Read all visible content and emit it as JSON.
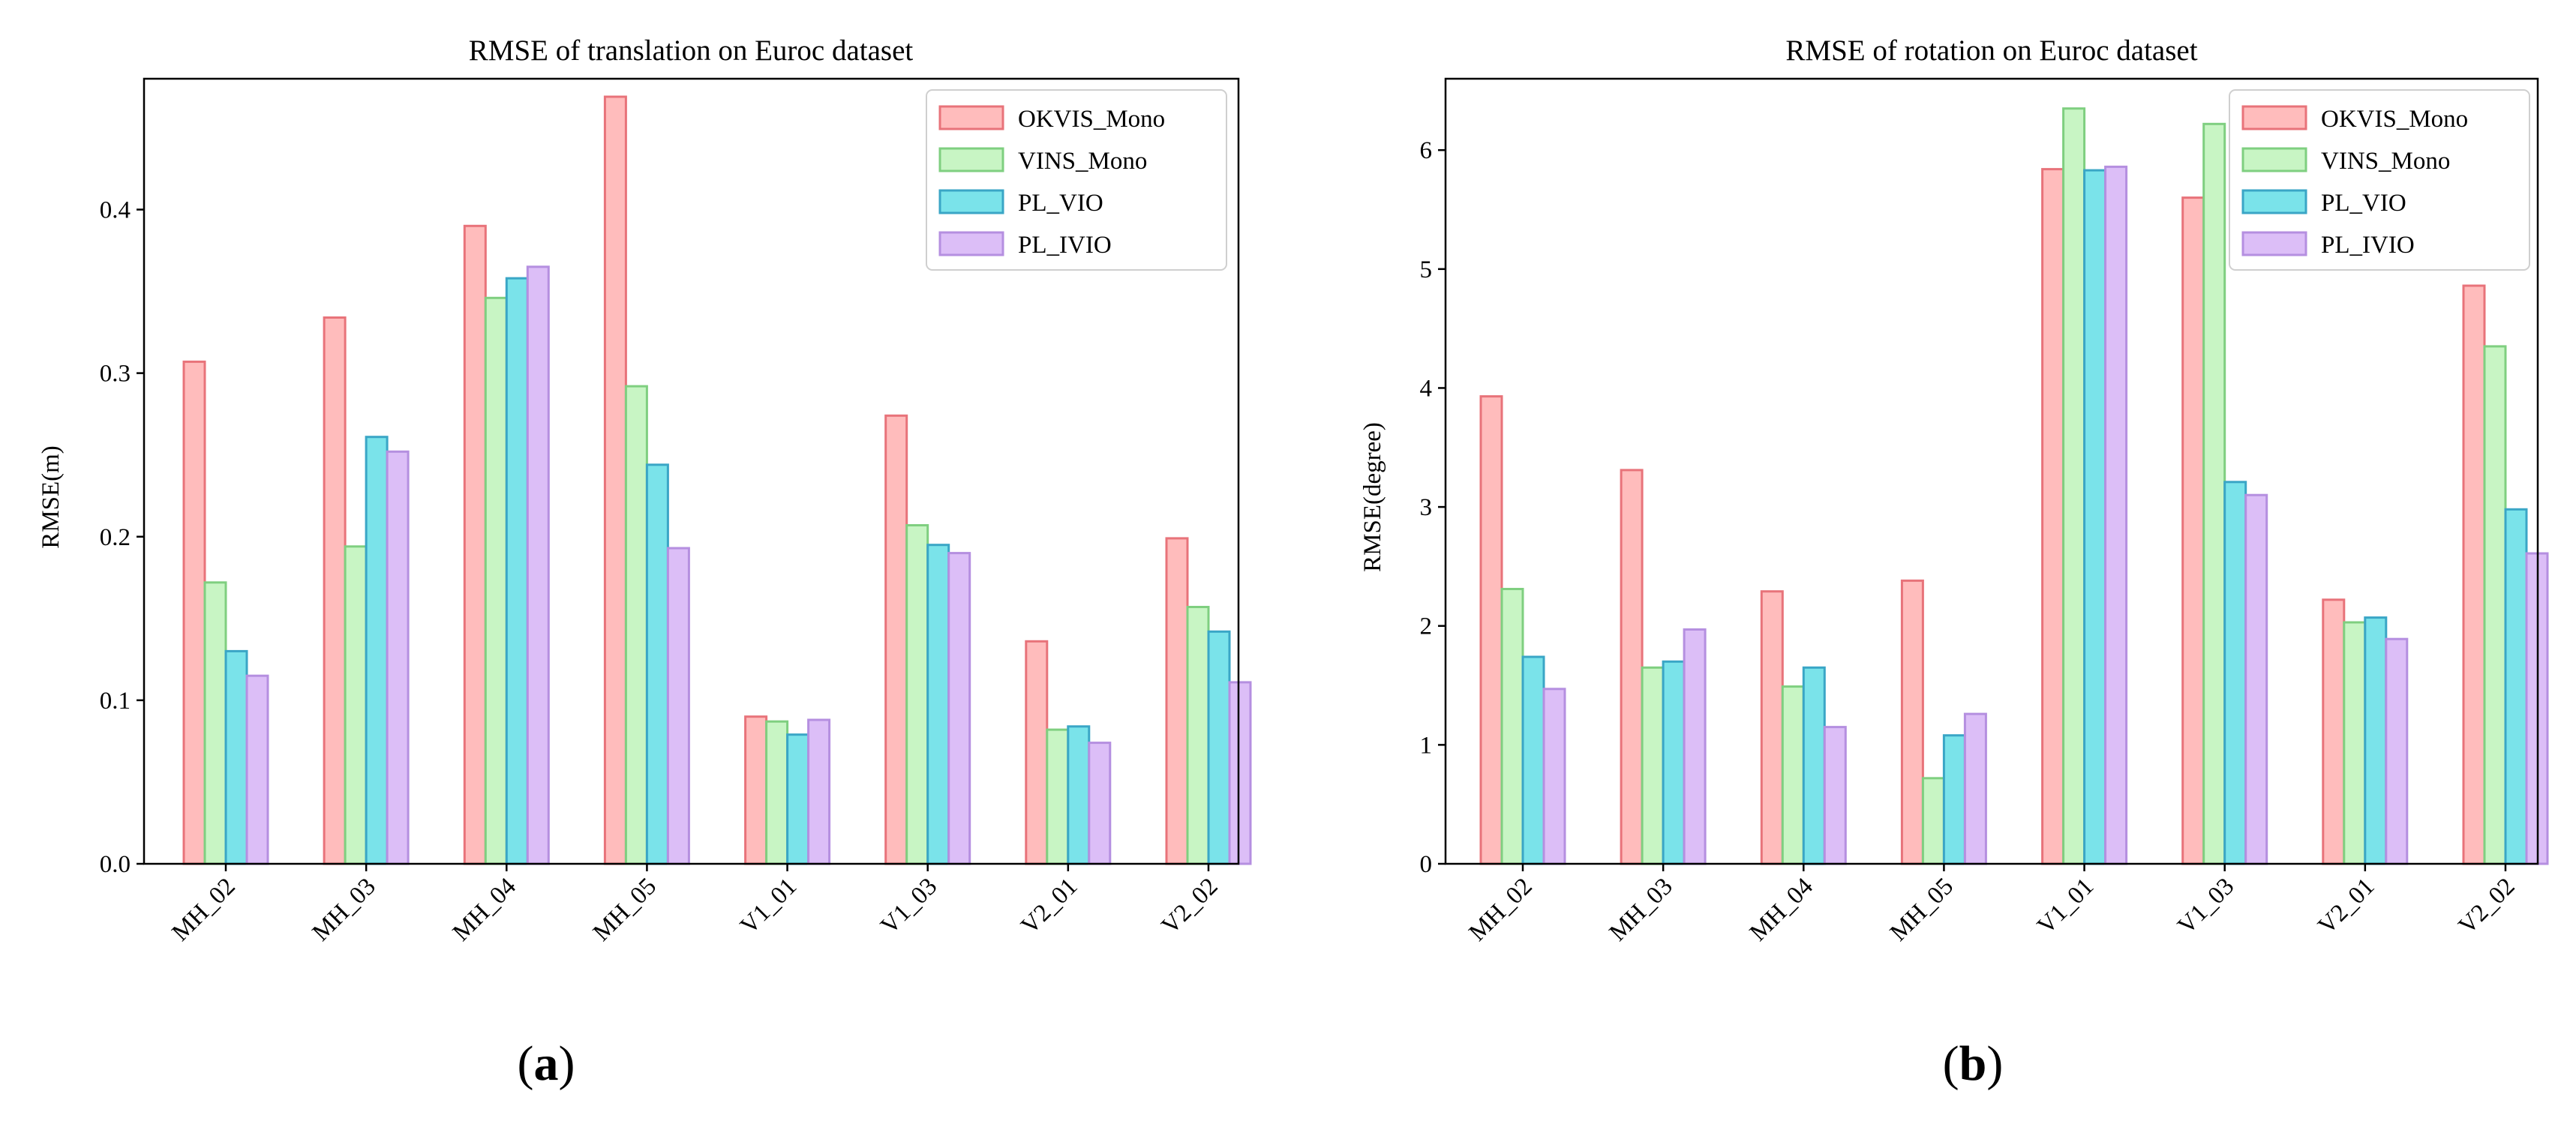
{
  "colors": {
    "OKVIS_Mono": {
      "fill": "#ffbcbc",
      "stroke": "#e8737a"
    },
    "VINS_Mono": {
      "fill": "#c8f5c4",
      "stroke": "#7fcf80"
    },
    "PL_VIO": {
      "fill": "#7ae3ea",
      "stroke": "#3aa6c6"
    },
    "PL_IVIO": {
      "fill": "#dcbef7",
      "stroke": "#b58fe0"
    }
  },
  "chart_data": [
    {
      "type": "bar",
      "title": "RMSE of translation on Euroc dataset",
      "xlabel": "",
      "ylabel": "RMSE(m)",
      "ylim": [
        0,
        0.48
      ],
      "yticks": [
        0.0,
        0.1,
        0.2,
        0.3,
        0.4
      ],
      "ytick_labels": [
        "0.0",
        "0.1",
        "0.2",
        "0.3",
        "0.4"
      ],
      "grid": false,
      "legend_position": "top-right",
      "categories": [
        "MH_02",
        "MH_03",
        "MH_04",
        "MH_05",
        "V1_01",
        "V1_03",
        "V2_01",
        "V2_02"
      ],
      "series": [
        {
          "name": "OKVIS_Mono",
          "values": [
            0.307,
            0.334,
            0.39,
            0.469,
            0.09,
            0.274,
            0.136,
            0.199
          ]
        },
        {
          "name": "VINS_Mono",
          "values": [
            0.172,
            0.194,
            0.346,
            0.292,
            0.087,
            0.207,
            0.082,
            0.157
          ]
        },
        {
          "name": "PL_VIO",
          "values": [
            0.13,
            0.261,
            0.358,
            0.244,
            0.079,
            0.195,
            0.084,
            0.142
          ]
        },
        {
          "name": "PL_IVIO",
          "values": [
            0.115,
            0.252,
            0.365,
            0.193,
            0.088,
            0.19,
            0.074,
            0.111
          ]
        }
      ],
      "panel_label": "a"
    },
    {
      "type": "bar",
      "title": "RMSE of rotation on Euroc dataset",
      "xlabel": "",
      "ylabel": "RMSE(degree)",
      "ylim": [
        0,
        6.6
      ],
      "yticks": [
        0,
        1,
        2,
        3,
        4,
        5,
        6
      ],
      "ytick_labels": [
        "0",
        "1",
        "2",
        "3",
        "4",
        "5",
        "6"
      ],
      "grid": false,
      "legend_position": "top-right",
      "categories": [
        "MH_02",
        "MH_03",
        "MH_04",
        "MH_05",
        "V1_01",
        "V1_03",
        "V2_01",
        "V2_02"
      ],
      "series": [
        {
          "name": "OKVIS_Mono",
          "values": [
            3.93,
            3.31,
            2.29,
            2.38,
            5.84,
            5.6,
            2.22,
            4.86
          ]
        },
        {
          "name": "VINS_Mono",
          "values": [
            2.31,
            1.65,
            1.49,
            0.72,
            6.35,
            6.22,
            2.03,
            4.35
          ]
        },
        {
          "name": "PL_VIO",
          "values": [
            1.74,
            1.7,
            1.65,
            1.08,
            5.83,
            3.21,
            2.07,
            2.98
          ]
        },
        {
          "name": "PL_IVIO",
          "values": [
            1.47,
            1.97,
            1.15,
            1.26,
            5.86,
            3.1,
            1.89,
            2.61
          ]
        }
      ],
      "panel_label": "b"
    }
  ]
}
